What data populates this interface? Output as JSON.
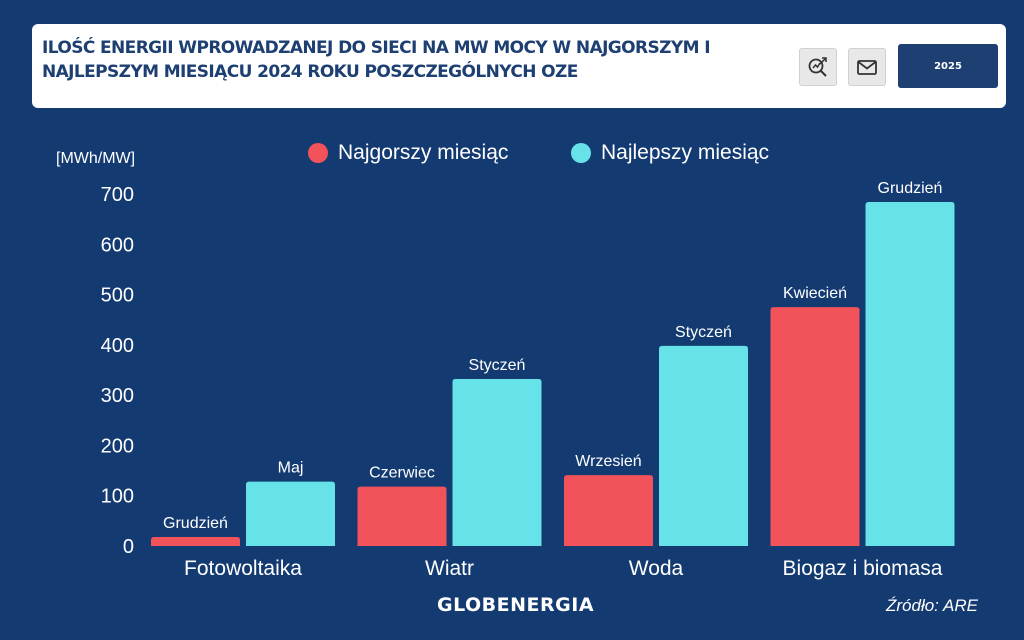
{
  "header": {
    "title": "ILOŚĆ ENERGII WPROWADZANEJ DO SIECI NA MW MOCY W NAJGORSZYM I NAJLEPSZYM MIESIĄCU 2024 ROKU POSZCZEGÓLNYCH OZE",
    "year_button": "2025",
    "icons": [
      "search-analytics-icon",
      "mail-icon"
    ]
  },
  "colors": {
    "background": "#143a72",
    "worst": "#f25259",
    "best": "#66e2e8",
    "header_text": "#1d3f72"
  },
  "chart_data": {
    "type": "bar",
    "title": "ILOŚĆ ENERGII WPROWADZANEJ DO SIECI NA MW MOCY W NAJGORSZYM I NAJLEPSZYM MIESIĄCU 2024 ROKU POSZCZEGÓLNYCH OZE",
    "ylabel": "[MWh/MW]",
    "xlabel": "",
    "ylim": [
      0,
      700
    ],
    "yticks": [
      0,
      100,
      200,
      300,
      400,
      500,
      600,
      700
    ],
    "categories": [
      "Fotowoltaika",
      "Wiatr",
      "Woda",
      "Biogaz i biomasa"
    ],
    "legend_position": "top",
    "series": [
      {
        "name": "Najgorszy miesiąc",
        "color": "#f25259",
        "values": [
          18,
          118,
          141,
          475
        ],
        "labels": [
          "Grudzień",
          "Czerwiec",
          "Wrzesień",
          "Kwiecień"
        ]
      },
      {
        "name": "Najlepszy miesiąc",
        "color": "#66e2e8",
        "values": [
          128,
          332,
          398,
          684
        ],
        "labels": [
          "Maj",
          "Styczeń",
          "Styczeń",
          "Grudzień"
        ]
      }
    ]
  },
  "footer": {
    "brand": "GLOBENERGIA",
    "source": "Źródło: ARE"
  }
}
